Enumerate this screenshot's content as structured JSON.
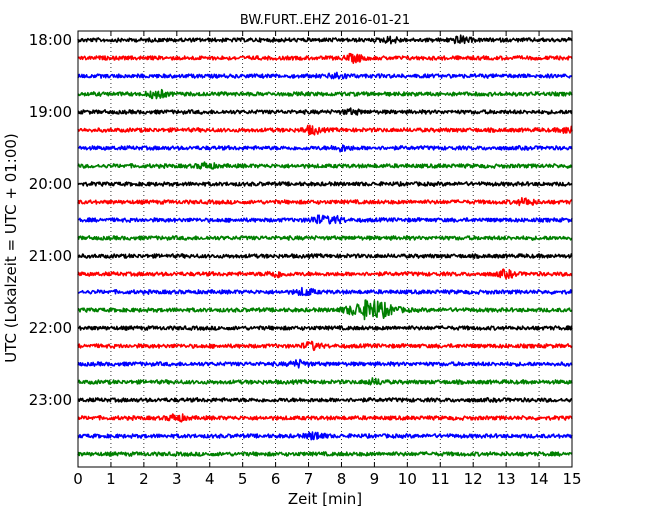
{
  "chart_data": {
    "type": "line",
    "title": "BW.FURT..EHZ 2016-01-21",
    "xlabel": "Zeit  [min]",
    "ylabel": "UTC (Lokalzeit = UTC + 01:00)",
    "xlim": [
      0,
      15
    ],
    "x_ticks": [
      "0",
      "1",
      "2",
      "3",
      "4",
      "5",
      "6",
      "7",
      "8",
      "9",
      "10",
      "11",
      "12",
      "13",
      "14",
      "15"
    ],
    "y_ticks": [
      "18:00",
      "19:00",
      "20:00",
      "21:00",
      "22:00",
      "23:00"
    ],
    "grid": "vertical dotted",
    "trace_colors": [
      "#000000",
      "#ff0000",
      "#0000ff",
      "#008000"
    ],
    "trace_count": 24,
    "trace_start_times": [
      "18:00",
      "18:15",
      "18:30",
      "18:45",
      "19:00",
      "19:15",
      "19:30",
      "19:45",
      "20:00",
      "20:15",
      "20:30",
      "20:45",
      "21:00",
      "21:15",
      "21:30",
      "21:45",
      "22:00",
      "22:15",
      "22:30",
      "22:45",
      "23:00",
      "23:15",
      "23:30",
      "23:45"
    ],
    "events": [
      {
        "trace": "18:00",
        "x_min": 11.6,
        "amp": 0.6
      },
      {
        "trace": "18:00",
        "x_min": 9.5,
        "amp": 0.45
      },
      {
        "trace": "18:15",
        "x_min": 8.4,
        "amp": 0.65
      },
      {
        "trace": "18:30",
        "x_min": 7.9,
        "amp": 0.55
      },
      {
        "trace": "18:45",
        "x_min": 2.4,
        "amp": 0.75
      },
      {
        "trace": "19:00",
        "x_min": 8.3,
        "amp": 0.4
      },
      {
        "trace": "19:15",
        "x_min": 7.1,
        "amp": 0.7
      },
      {
        "trace": "19:15",
        "x_min": 14.9,
        "amp": 0.5
      },
      {
        "trace": "19:30",
        "x_min": 8.0,
        "amp": 0.45
      },
      {
        "trace": "19:45",
        "x_min": 3.9,
        "amp": 0.5
      },
      {
        "trace": "20:15",
        "x_min": 13.6,
        "amp": 0.6
      },
      {
        "trace": "20:30",
        "x_min": 7.3,
        "amp": 0.65
      },
      {
        "trace": "20:30",
        "x_min": 7.8,
        "amp": 0.55
      },
      {
        "trace": "21:15",
        "x_min": 13.0,
        "amp": 0.6
      },
      {
        "trace": "21:15",
        "x_min": 6.0,
        "amp": 0.5
      },
      {
        "trace": "21:30",
        "x_min": 6.9,
        "amp": 0.6
      },
      {
        "trace": "21:45",
        "x_min": 8.9,
        "amp": 1.6
      },
      {
        "trace": "22:15",
        "x_min": 7.1,
        "amp": 0.65
      },
      {
        "trace": "22:30",
        "x_min": 6.7,
        "amp": 0.55
      },
      {
        "trace": "22:45",
        "x_min": 9.0,
        "amp": 0.45
      },
      {
        "trace": "23:15",
        "x_min": 3.0,
        "amp": 0.6
      },
      {
        "trace": "23:30",
        "x_min": 7.2,
        "amp": 0.65
      }
    ]
  }
}
